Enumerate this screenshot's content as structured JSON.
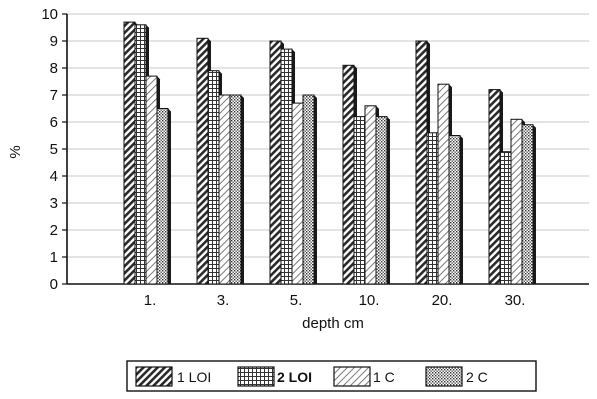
{
  "chart_data": {
    "type": "bar",
    "title": "",
    "xlabel": "depth cm",
    "ylabel": "%",
    "ylim": [
      0,
      10
    ],
    "yticks": [
      0,
      1,
      2,
      3,
      4,
      5,
      6,
      7,
      8,
      9,
      10
    ],
    "grid": true,
    "legend_position": "bottom",
    "categories": [
      "1.",
      "3.",
      "5.",
      "10.",
      "20.",
      "30."
    ],
    "series": [
      {
        "name": "1 LOI",
        "values": [
          9.7,
          9.1,
          9.0,
          8.1,
          9.0,
          7.2
        ],
        "pattern": "diagonal-hatch",
        "bold_label": false
      },
      {
        "name": "2 LOI",
        "values": [
          9.6,
          7.9,
          8.7,
          6.2,
          5.6,
          4.9
        ],
        "pattern": "grid-hatch",
        "bold_label": true
      },
      {
        "name": "1 C",
        "values": [
          7.7,
          7.0,
          6.7,
          6.6,
          7.4,
          6.1
        ],
        "pattern": "light-diagonal",
        "bold_label": false
      },
      {
        "name": "2 C",
        "values": [
          6.5,
          7.0,
          7.0,
          6.2,
          5.5,
          5.9
        ],
        "pattern": "dots",
        "bold_label": false
      }
    ]
  }
}
